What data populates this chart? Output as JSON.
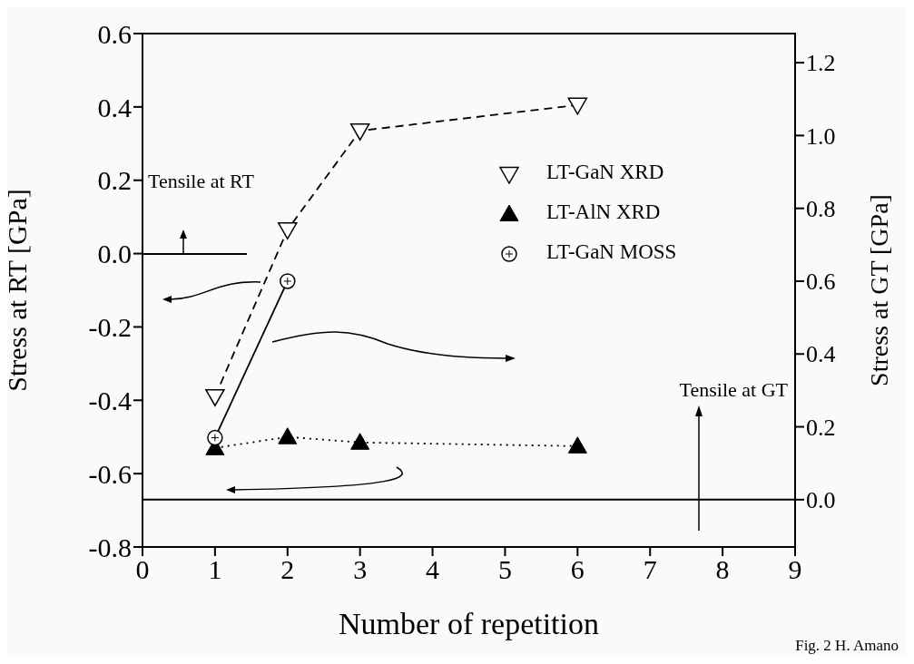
{
  "chart_data": {
    "type": "line",
    "xlabel": "Number of repetition",
    "ylabel": "Stress at RT [GPa]",
    "y2label": "Stress at GT [GPa]",
    "xlim": [
      0,
      9
    ],
    "xticks": [
      0,
      1,
      2,
      3,
      4,
      5,
      6,
      7,
      8,
      9
    ],
    "ylim": [
      -0.8,
      0.6
    ],
    "yticks": [
      {
        "value": -0.8,
        "label": "-0.8"
      },
      {
        "value": -0.6,
        "label": "-0.6"
      },
      {
        "value": -0.4,
        "label": "-0.4"
      },
      {
        "value": -0.2,
        "label": "-0.2"
      },
      {
        "value": 0,
        "label": "0.0"
      },
      {
        "value": 0.2,
        "label": "0.2"
      },
      {
        "value": 0.4,
        "label": "0.4"
      },
      {
        "value": 0.6,
        "label": "0.6"
      }
    ],
    "y2lim": [
      -0.13,
      1.28
    ],
    "y2ticks": [
      {
        "value": 0,
        "label": "0.0"
      },
      {
        "value": 0.2,
        "label": "0.2"
      },
      {
        "value": 0.4,
        "label": "0.4"
      },
      {
        "value": 0.6,
        "label": "0.6"
      },
      {
        "value": 0.8,
        "label": "0.8"
      },
      {
        "value": 1,
        "label": "1.0"
      },
      {
        "value": 1.2,
        "label": "1.2"
      }
    ],
    "series": [
      {
        "name": "LT-GaN XRD",
        "color": "#000000",
        "x": [
          1,
          2,
          3,
          6
        ],
        "values": [
          -0.39,
          0.065,
          0.335,
          0.405
        ],
        "marker": "triangle-down",
        "line_style": "dashed"
      },
      {
        "name": "LT-AlN XRD",
        "color": "#000000",
        "x": [
          1,
          2,
          3,
          6
        ],
        "values": [
          -0.53,
          -0.5,
          -0.515,
          -0.525
        ],
        "marker": "triangle",
        "line_style": "dotted"
      },
      {
        "name": "LT-GaN MOSS",
        "color": "#000000",
        "x": [
          1,
          2
        ],
        "values": [
          0.17,
          0.6
        ],
        "marker": "circle",
        "line_style": "solid",
        "axis": "y2"
      }
    ],
    "ref_lines": [
      {
        "axis": "y2",
        "value": 0
      }
    ],
    "legend": "top right",
    "grid": false,
    "annotations": [
      "Tensile at RT",
      "Tensile at GT",
      "Fig. 2 H. Amano"
    ]
  }
}
